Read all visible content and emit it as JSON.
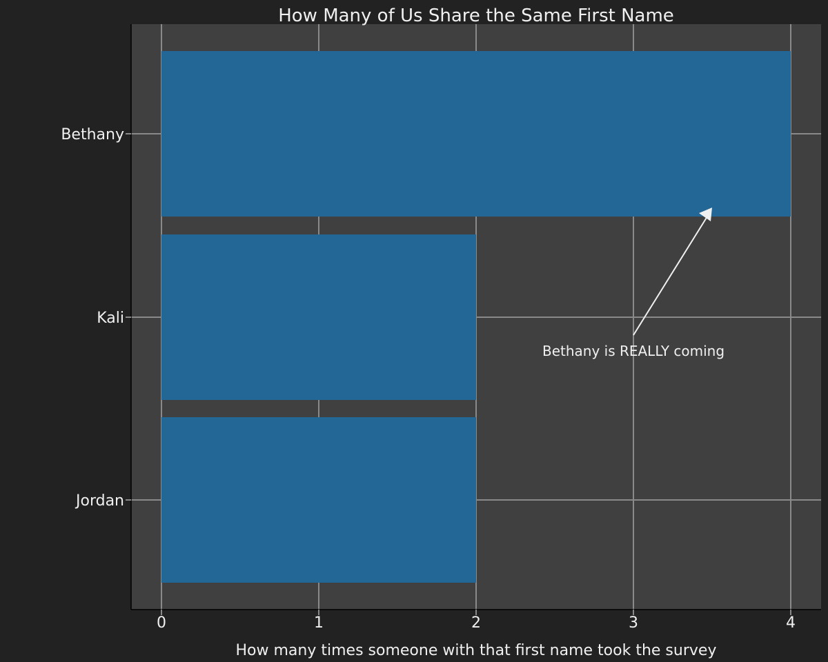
{
  "chart_data": {
    "type": "bar",
    "orientation": "horizontal",
    "title": "How Many of Us Share the Same First Name",
    "xlabel": "How many times someone with that first name took the survey",
    "ylabel": "",
    "categories": [
      "Bethany",
      "Kali",
      "Jordan"
    ],
    "values": [
      4,
      2,
      2
    ],
    "xlim": [
      0,
      4
    ],
    "xticks": [
      0,
      1,
      2,
      3,
      4
    ],
    "grid": true,
    "annotation": {
      "text": "Bethany is REALLY coming",
      "target": {
        "category": "Bethany",
        "x": 3.5
      },
      "text_anchor": {
        "x": 3.0,
        "category_between": "Kali/Jordan"
      }
    },
    "colors": {
      "figure_background": "#222222",
      "plot_background": "#404040",
      "bar": "#236796",
      "grid": "#8a8a8a",
      "text": "#f0f0f0"
    }
  }
}
